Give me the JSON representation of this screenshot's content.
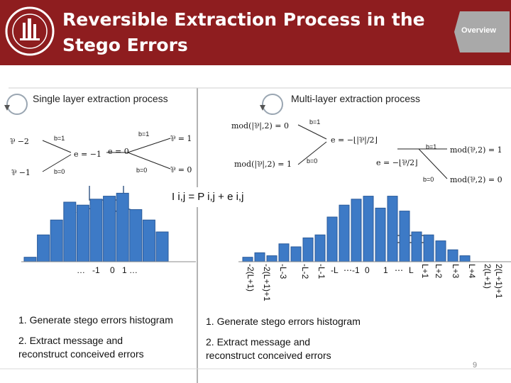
{
  "slide": {
    "title": "Reversible Extraction Process in the Stego Errors",
    "overview_label": "Overview",
    "page_number": "9",
    "colors": {
      "header": "#8e1d1f",
      "bar": "#3d7ac6",
      "bar_edge": "#2a5a9a",
      "divider": "#9a9a9a"
    }
  },
  "left_panel": {
    "heading": "Single layer extraction process",
    "labels": {
      "b1_a": "b=1",
      "b1_b": "b=1",
      "b0_a": "b=0",
      "b0_b": "b=0"
    },
    "math": {
      "m1": "⅌ −2",
      "m2": "⅌ −1",
      "m3": "e = −1",
      "m4": "e = 0",
      "m5": "⅌ = 1",
      "m6": "⅌ = 0"
    },
    "x_ticks": [
      "…",
      "-1",
      "0",
      "1 …"
    ],
    "steps": [
      "1. Generate stego errors histogram",
      "2. Extract message and",
      "reconstruct conceived errors"
    ]
  },
  "right_panel": {
    "heading": "Multi-layer extraction process",
    "labels": {
      "b1_top": "b=1",
      "b0_mid": "b=0",
      "b1_right": "b=1",
      "b0_right": "b=0"
    },
    "math": {
      "m1": "mod(|⅌|,2) = 0",
      "m2": "mod(|⅌|,2) = 1",
      "m3": "e = −⌊|⅌|/2⌋",
      "m4": "e = −⌊⅌/2⌋",
      "m5": "mod(⅌,2) = 1",
      "m6": "mod(⅌,2) = 0"
    },
    "x_ticks_vertical": [
      "-2(L+1)",
      "-2(L+1)+1",
      "-L-3",
      "-L-2",
      "-L-1"
    ],
    "x_ticks_mid": [
      "-L",
      "⋯-1",
      "0",
      "1",
      "⋯",
      "L"
    ],
    "x_ticks_right": [
      "L+1",
      "L+2",
      "L+3",
      "L+4",
      "2(L+1)",
      "2(L+1)+1"
    ],
    "steps": [
      "1. Generate stego errors histogram",
      "2. Extract message and",
      "reconstruct conceived errors"
    ]
  },
  "formula": "I i,j = P i,j + e i,j",
  "chart_data": [
    {
      "type": "bar",
      "name": "left histogram",
      "values": [
        3,
        18,
        28,
        40,
        38,
        42,
        44,
        46,
        35,
        28,
        20
      ]
    },
    {
      "type": "bar",
      "name": "right histogram",
      "values": [
        3,
        6,
        4,
        12,
        10,
        16,
        18,
        30,
        38,
        42,
        44,
        36,
        44,
        34,
        20,
        18,
        14,
        8,
        4
      ]
    }
  ]
}
